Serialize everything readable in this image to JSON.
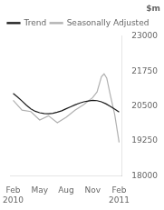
{
  "chart_data": {
    "type": "line",
    "title": "$m",
    "xlim": [
      -0.3,
      12.3
    ],
    "xticks": [
      {
        "value": 0,
        "label": "Feb\n2010"
      },
      {
        "value": 3,
        "label": "May"
      },
      {
        "value": 6,
        "label": "Aug"
      },
      {
        "value": 9,
        "label": "Nov"
      },
      {
        "value": 12,
        "label": "Feb\n2011"
      }
    ],
    "ylim": [
      18000,
      23000
    ],
    "yticks": [
      18000,
      19250,
      20500,
      21750,
      23000
    ],
    "grid": false,
    "legend": "upper left",
    "series": [
      {
        "name": "Trend",
        "color": "#1a1a1a",
        "x": [
          0,
          0.5,
          1,
          1.5,
          2,
          2.5,
          3,
          3.5,
          4,
          4.5,
          5,
          5.5,
          6,
          6.5,
          7,
          7.5,
          8,
          8.5,
          9,
          9.5,
          10,
          10.5,
          11,
          11.5,
          12
        ],
        "values": [
          20950,
          20820,
          20680,
          20530,
          20400,
          20310,
          20260,
          20230,
          20220,
          20240,
          20280,
          20330,
          20400,
          20470,
          20540,
          20600,
          20650,
          20680,
          20700,
          20690,
          20650,
          20580,
          20490,
          20390,
          20280
        ]
      },
      {
        "name": "Seasonally Adjusted",
        "color": "#b0b0b0",
        "x": [
          0,
          1,
          2,
          3,
          4,
          5,
          6,
          7,
          8,
          9,
          9.5,
          10,
          10.3,
          10.6,
          11,
          11.5,
          12
        ],
        "values": [
          20700,
          20350,
          20300,
          20000,
          20150,
          19900,
          20100,
          20350,
          20550,
          20800,
          21000,
          21550,
          21650,
          21500,
          20900,
          20200,
          19200
        ]
      }
    ]
  }
}
